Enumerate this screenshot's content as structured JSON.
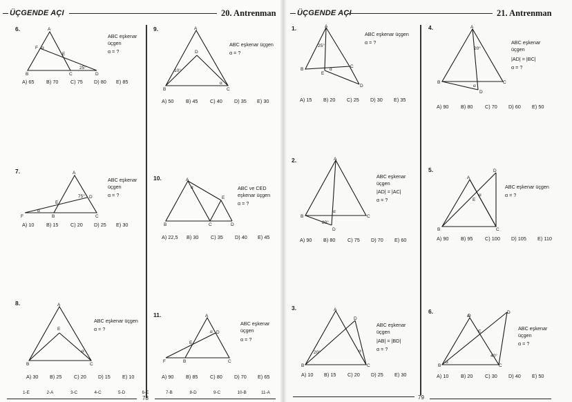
{
  "left_page": {
    "header": {
      "title": "ÜÇGENDE AÇI",
      "training": "20. Antrenman"
    },
    "page_number": "78",
    "answer_key": [
      "1-E",
      "2-A",
      "3-C",
      "4-C",
      "5-D",
      "6-E",
      "7-B",
      "8-D",
      "9-C",
      "10-B",
      "11-A"
    ],
    "questions": [
      {
        "number": "6.",
        "statement": "ABC eşkenar üçgen",
        "ask": "α = ?",
        "choices": [
          "A) 65",
          "B) 70",
          "C) 75",
          "D) 80",
          "E) 85"
        ],
        "labels": [
          "A",
          "F",
          "α",
          "E",
          "B",
          "C",
          "D",
          "25°"
        ]
      },
      {
        "number": "9.",
        "statement": "ABC eşkenar üçgen",
        "ask": "α = ?",
        "choices": [
          "A) 50",
          "B) 45",
          "C) 40",
          "D) 35",
          "E) 30"
        ],
        "labels": [
          "A",
          "D",
          "10°",
          "B",
          "C",
          "α"
        ]
      },
      {
        "number": "7.",
        "statement": "ABC eşkenar üçgen",
        "ask": "α = ?",
        "choices": [
          "A) 10",
          "B) 15",
          "C) 20",
          "D) 25",
          "E) 30"
        ],
        "labels": [
          "A",
          "75°",
          "D",
          "E",
          "F",
          "α",
          "B",
          "C"
        ]
      },
      {
        "number": "10.",
        "statement": "ABC ve CED eşkenar üçgen",
        "ask": "α = ?",
        "choices": [
          "A) 22,5",
          "B) 30",
          "C) 35",
          "D) 40",
          "E) 45"
        ],
        "labels": [
          "A",
          "α",
          "E",
          "B",
          "C",
          "D"
        ]
      },
      {
        "number": "8.",
        "statement": "ABC eşkenar üçgen",
        "ask": "α = ?",
        "choices": [
          "A) 30",
          "B) 25",
          "C) 20",
          "D) 15",
          "E) 10"
        ],
        "labels": [
          "A",
          "E",
          "α",
          "B",
          "C"
        ]
      },
      {
        "number": "11.",
        "statement": "ABC eşkenar üçgen",
        "ask": "α = ?",
        "choices": [
          "A) 90",
          "B) 85",
          "C) 80",
          "D) 70",
          "E) 65"
        ],
        "labels": [
          "A",
          "α",
          "D",
          "E",
          "F",
          "B",
          "C"
        ]
      }
    ]
  },
  "right_page": {
    "header": {
      "title": "ÜÇGENDE AÇI",
      "training": "21. Antrenman"
    },
    "page_number": "79",
    "questions": [
      {
        "number": "1.",
        "statement": "ABC eşkenar üçgen",
        "ask": "α = ?",
        "choices": [
          "A) 15",
          "B) 20",
          "C) 25",
          "D) 30",
          "E) 35"
        ],
        "labels": [
          "A",
          "25°",
          "B",
          "E",
          "α",
          "C",
          "D"
        ]
      },
      {
        "number": "4.",
        "statement": "ABC eşkenar üçgen",
        "condition": "|AD| = |BC|",
        "ask": "α = ?",
        "choices": [
          "A) 90",
          "B) 80",
          "C) 70",
          "D) 60",
          "E) 50"
        ],
        "labels": [
          "A",
          "20°",
          "B",
          "C",
          "α",
          "D"
        ]
      },
      {
        "number": "2.",
        "statement": "ABC eşkenar üçgen",
        "condition": "|AD| = |AC|",
        "ask": "α = ?",
        "choices": [
          "A) 90",
          "B) 80",
          "C) 75",
          "D) 70",
          "E) 60"
        ],
        "labels": [
          "A",
          "B",
          "α",
          "80°",
          "D",
          "C"
        ]
      },
      {
        "number": "5.",
        "statement": "ABC eşkenar üçgen",
        "ask": "α = ?",
        "choices": [
          "A) 90",
          "B) 95",
          "C) 100",
          "D) 105",
          "E) 110"
        ],
        "labels": [
          "D",
          "A",
          "α",
          "E",
          "B",
          "C"
        ]
      },
      {
        "number": "3.",
        "statement": "ABC eşkenar üçgen",
        "condition": "|AB| = |BD|",
        "ask": "α = ?",
        "choices": [
          "A) 10",
          "B) 15",
          "C) 20",
          "D) 25",
          "E) 30"
        ],
        "labels": [
          "A",
          "D",
          "20°",
          "α",
          "B",
          "C"
        ]
      },
      {
        "number": "6.",
        "statement": "ABC eşkenar üçgen",
        "ask": "α = ?",
        "choices": [
          "A) 10",
          "B) 20",
          "C) 30",
          "D) 40",
          "E) 50"
        ],
        "labels": [
          "D",
          "A",
          "E",
          "40°",
          "B",
          "α",
          "C"
        ]
      }
    ]
  }
}
